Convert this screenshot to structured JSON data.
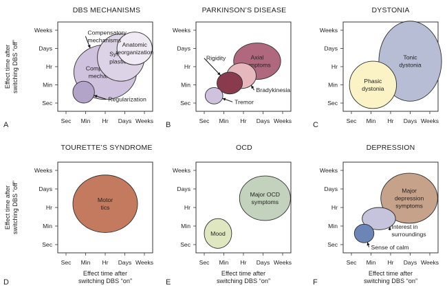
{
  "y_axis_title": [
    "Effect time after",
    "switching DBS “off”"
  ],
  "x_axis_title": [
    "Effect time after",
    "switching DBS “on”"
  ],
  "time_categories": [
    "Sec",
    "Min",
    "Hr",
    "Days",
    "Weeks"
  ],
  "colors": {
    "panel_bg": "#ffffff",
    "axis": "#333333",
    "text": "#222222",
    "lavender_light": "#f0eaf4",
    "lavender": "#ddd3e6",
    "lavender_mid": "#cfc2df",
    "lavender_dark": "#b2a4c9",
    "rose": "#b0687f",
    "rose_light": "#e6b8bd",
    "plum": "#8a3a4d",
    "peach": "#e9bfaa",
    "periwinkle": "#c6c3dc",
    "cream": "#fbf2c5",
    "slate": "#b6bdd4",
    "terracotta": "#c47a5e",
    "sage": "#c3d2bd",
    "olive_light": "#dfe7c0",
    "taupe": "#c7a28a",
    "blue": "#6b86b6"
  },
  "chart_data": [
    {
      "type": "bubble",
      "letter": "A",
      "title": "DBS MECHANISMS",
      "xlabel": "",
      "ylabel": "Effect time after switching DBS “off”",
      "x_categories": [
        "Sec",
        "Min",
        "Hr",
        "Days",
        "Weeks"
      ],
      "y_categories": [
        "Sec",
        "Min",
        "Hr",
        "Days",
        "Weeks"
      ],
      "bubbles": [
        {
          "name": "Compensatory mechanisms",
          "lines": [
            "Compensatory",
            "mechanisms"
          ],
          "show_label": true,
          "x_center": 2.0,
          "y_center": 1.7,
          "x_halfwidth": 1.6,
          "y_halfheight": 1.5,
          "color": "lavender_mid"
        },
        {
          "name": "Synaptic plasticity",
          "lines": [
            "Synaptic",
            "plasticity"
          ],
          "show_label": true,
          "x_center": 2.8,
          "y_center": 2.5,
          "x_halfwidth": 1.2,
          "y_halfheight": 1.3,
          "color": "lavender"
        },
        {
          "name": "Anatomic reorganization",
          "lines": [
            "Anatomic",
            "reorganization"
          ],
          "show_label": true,
          "x_center": 3.5,
          "y_center": 3.0,
          "x_halfwidth": 0.9,
          "y_halfheight": 0.9,
          "color": "lavender_light"
        },
        {
          "name": "Regularization",
          "lines": [
            "Regularization"
          ],
          "show_label": false,
          "x_center": 0.9,
          "y_center": 0.6,
          "x_halfwidth": 0.55,
          "y_halfheight": 0.6,
          "color": "lavender_dark"
        }
      ],
      "annotations": [
        {
          "name": "Compensatory mechanisms",
          "lines": [
            "Compensatory",
            "mechanisms"
          ],
          "x": 1.1,
          "y": 3.75
        },
        {
          "name": "Regularization",
          "lines": [
            "Regularization"
          ],
          "x": 2.15,
          "y": 0.1
        }
      ]
    },
    {
      "type": "bubble",
      "letter": "B",
      "title": "PARKINSON’S DISEASE",
      "xlabel": "",
      "ylabel": "",
      "x_categories": [
        "Sec",
        "Min",
        "Hr",
        "Days",
        "Weeks"
      ],
      "y_categories": [
        "Sec",
        "Min",
        "Hr",
        "Days",
        "Weeks"
      ],
      "bubbles": [
        {
          "name": "Axial symptoms",
          "lines": [
            "Axial",
            "symptoms"
          ],
          "show_label": true,
          "x_center": 2.7,
          "y_center": 2.3,
          "x_halfwidth": 1.2,
          "y_halfheight": 1.0,
          "color": "rose"
        },
        {
          "name": "Bradykinesia",
          "lines": [
            "Bradykinesia"
          ],
          "show_label": false,
          "x_center": 1.9,
          "y_center": 1.5,
          "x_halfwidth": 0.75,
          "y_halfheight": 0.7,
          "color": "rose_light"
        },
        {
          "name": "Rigidity",
          "lines": [
            "Rigidity"
          ],
          "show_label": false,
          "x_center": 1.3,
          "y_center": 1.1,
          "x_halfwidth": 0.65,
          "y_halfheight": 0.6,
          "color": "plum"
        },
        {
          "name": "Tremor",
          "lines": [
            "Tremor"
          ],
          "show_label": false,
          "x_center": 0.5,
          "y_center": 0.4,
          "x_halfwidth": 0.45,
          "y_halfheight": 0.45,
          "color": "lavender_mid"
        }
      ],
      "annotations": [
        {
          "name": "Rigidity",
          "lines": [
            "Rigidity"
          ],
          "x": 0.1,
          "y": 2.35
        },
        {
          "name": "Bradykinesia",
          "lines": [
            "Bradykinesia"
          ],
          "x": 2.65,
          "y": 0.6
        },
        {
          "name": "Tremor",
          "lines": [
            "Tremor"
          ],
          "x": 1.55,
          "y": -0.05
        }
      ]
    },
    {
      "type": "bubble",
      "letter": "C",
      "title": "DYSTONIA",
      "xlabel": "",
      "ylabel": "",
      "x_categories": [
        "Sec",
        "Min",
        "Hr",
        "Days",
        "Weeks"
      ],
      "y_categories": [
        "Sec",
        "Min",
        "Hr",
        "Days",
        "Weeks"
      ],
      "bubbles": [
        {
          "name": "Tonic dystonia",
          "lines": [
            "Tonic",
            "dystonia"
          ],
          "show_label": true,
          "x_center": 3.0,
          "y_center": 2.3,
          "x_halfwidth": 1.6,
          "y_halfheight": 2.2,
          "color": "slate"
        },
        {
          "name": "Phasic dystonia",
          "lines": [
            "Phasic",
            "dystonia"
          ],
          "show_label": true,
          "x_center": 1.1,
          "y_center": 1.0,
          "x_halfwidth": 1.2,
          "y_halfheight": 1.3,
          "color": "cream"
        }
      ],
      "annotations": []
    },
    {
      "type": "bubble",
      "letter": "D",
      "title": "TOURETTE’S SYNDROME",
      "xlabel": "Effect time after switching DBS “on”",
      "ylabel": "Effect time after switching DBS “off”",
      "x_categories": [
        "Sec",
        "Min",
        "Hr",
        "Days",
        "Weeks"
      ],
      "y_categories": [
        "Sec",
        "Min",
        "Hr",
        "Days",
        "Weeks"
      ],
      "bubbles": [
        {
          "name": "Motor tics",
          "lines": [
            "Motor",
            "tics"
          ],
          "show_label": true,
          "x_center": 2.0,
          "y_center": 2.2,
          "x_halfwidth": 1.65,
          "y_halfheight": 1.55,
          "color": "terracotta"
        }
      ],
      "annotations": []
    },
    {
      "type": "bubble",
      "letter": "E",
      "title": "OCD",
      "xlabel": "Effect time after switching DBS “on”",
      "ylabel": "",
      "x_categories": [
        "Sec",
        "Min",
        "Hr",
        "Days",
        "Weeks"
      ],
      "y_categories": [
        "Sec",
        "Min",
        "Hr",
        "Days",
        "Weeks"
      ],
      "bubbles": [
        {
          "name": "Major OCD symptoms",
          "lines": [
            "Major OCD",
            "symptoms"
          ],
          "show_label": true,
          "x_center": 3.1,
          "y_center": 2.5,
          "x_halfwidth": 1.3,
          "y_halfheight": 1.2,
          "color": "sage"
        },
        {
          "name": "Mood",
          "lines": [
            "Mood"
          ],
          "show_label": true,
          "x_center": 0.7,
          "y_center": 0.6,
          "x_halfwidth": 0.7,
          "y_halfheight": 0.8,
          "color": "olive_light"
        }
      ],
      "annotations": []
    },
    {
      "type": "bubble",
      "letter": "F",
      "title": "DEPRESSION",
      "xlabel": "Effect time after switching DBS “on”",
      "ylabel": "",
      "x_categories": [
        "Sec",
        "Min",
        "Hr",
        "Days",
        "Weeks"
      ],
      "y_categories": [
        "Sec",
        "Min",
        "Hr",
        "Days",
        "Weeks"
      ],
      "bubbles": [
        {
          "name": "Major depression symptoms",
          "lines": [
            "Major",
            "depression",
            "symptoms"
          ],
          "show_label": true,
          "x_center": 2.95,
          "y_center": 2.5,
          "x_halfwidth": 1.45,
          "y_halfheight": 1.35,
          "color": "taupe"
        },
        {
          "name": "Interest in surroundings",
          "lines": [
            "Interest in",
            "surroundings"
          ],
          "show_label": false,
          "x_center": 1.4,
          "y_center": 1.4,
          "x_halfwidth": 0.85,
          "y_halfheight": 0.6,
          "color": "periwinkle"
        },
        {
          "name": "Sense of calm",
          "lines": [
            "Sense of calm"
          ],
          "show_label": false,
          "x_center": 0.65,
          "y_center": 0.6,
          "x_halfwidth": 0.5,
          "y_halfheight": 0.5,
          "color": "blue"
        }
      ],
      "annotations": [
        {
          "name": "Interest in surroundings",
          "lines": [
            "Interest in",
            "surroundings"
          ],
          "x": 2.05,
          "y": 0.85
        },
        {
          "name": "Sense of calm",
          "lines": [
            "Sense of calm"
          ],
          "x": 1.0,
          "y": -0.25
        }
      ]
    }
  ]
}
